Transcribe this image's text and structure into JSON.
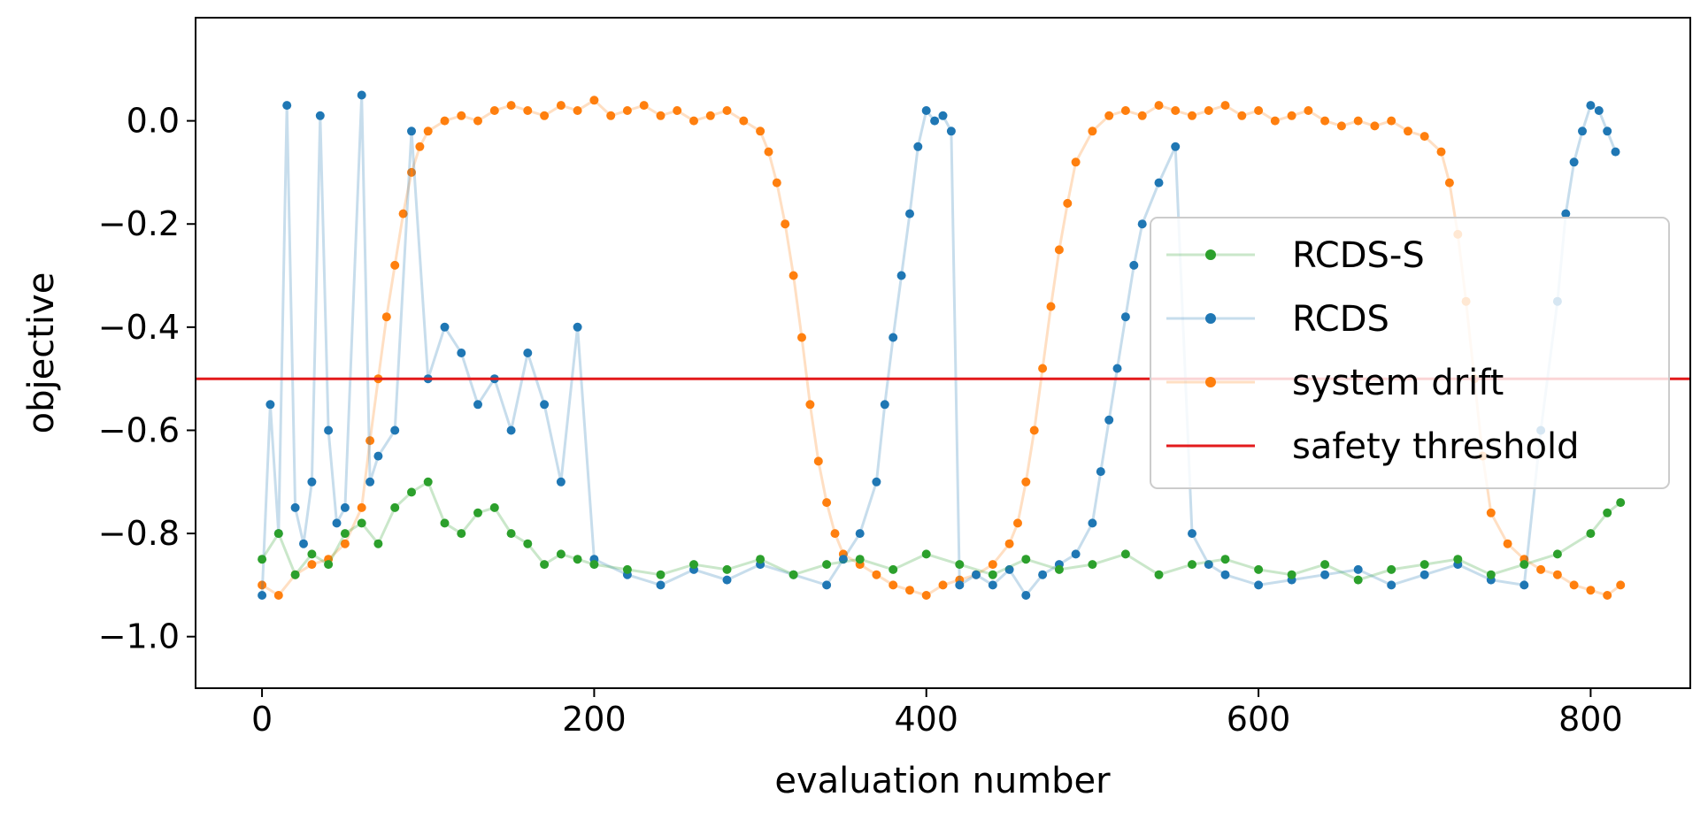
{
  "chart_data": {
    "type": "line",
    "title": "",
    "xlabel": "evaluation number",
    "ylabel": "objective",
    "xlim": [
      -40,
      860
    ],
    "ylim": [
      -1.1,
      0.2
    ],
    "xticks": [
      0,
      200,
      400,
      600,
      800
    ],
    "xtick_labels": [
      "0",
      "200",
      "400",
      "600",
      "800"
    ],
    "yticks": [
      0.0,
      -0.2,
      -0.4,
      -0.6,
      -0.8,
      -1.0
    ],
    "ytick_labels": [
      "0.0",
      "−0.2",
      "−0.4",
      "−0.6",
      "−0.8",
      "−1.0"
    ],
    "grid": false,
    "legend_position": "center-right",
    "series": [
      {
        "name": "system drift",
        "color": "#ff7f0e",
        "x": [
          0,
          10,
          20,
          30,
          40,
          50,
          60,
          65,
          70,
          75,
          80,
          85,
          90,
          95,
          100,
          110,
          120,
          130,
          140,
          150,
          160,
          170,
          180,
          190,
          200,
          210,
          220,
          230,
          240,
          250,
          260,
          270,
          280,
          290,
          300,
          305,
          310,
          315,
          320,
          325,
          330,
          335,
          340,
          345,
          350,
          360,
          370,
          380,
          390,
          400,
          410,
          420,
          430,
          440,
          450,
          455,
          460,
          465,
          470,
          475,
          480,
          485,
          490,
          500,
          510,
          520,
          530,
          540,
          550,
          560,
          570,
          580,
          590,
          600,
          610,
          620,
          630,
          640,
          650,
          660,
          670,
          680,
          690,
          700,
          710,
          715,
          720,
          725,
          730,
          735,
          740,
          750,
          760,
          770,
          780,
          790,
          800,
          810,
          818
        ],
        "values": [
          -0.9,
          -0.92,
          -0.88,
          -0.86,
          -0.85,
          -0.82,
          -0.75,
          -0.62,
          -0.5,
          -0.38,
          -0.28,
          -0.18,
          -0.1,
          -0.05,
          -0.02,
          0.0,
          0.01,
          0.0,
          0.02,
          0.03,
          0.02,
          0.01,
          0.03,
          0.02,
          0.04,
          0.01,
          0.02,
          0.03,
          0.01,
          0.02,
          0.0,
          0.01,
          0.02,
          0.0,
          -0.02,
          -0.06,
          -0.12,
          -0.2,
          -0.3,
          -0.42,
          -0.55,
          -0.66,
          -0.74,
          -0.8,
          -0.84,
          -0.86,
          -0.88,
          -0.9,
          -0.91,
          -0.92,
          -0.9,
          -0.89,
          -0.88,
          -0.86,
          -0.82,
          -0.78,
          -0.7,
          -0.6,
          -0.48,
          -0.36,
          -0.25,
          -0.16,
          -0.08,
          -0.02,
          0.01,
          0.02,
          0.01,
          0.03,
          0.02,
          0.01,
          0.02,
          0.03,
          0.01,
          0.02,
          0.0,
          0.01,
          0.02,
          0.0,
          -0.01,
          0.0,
          -0.01,
          0.0,
          -0.02,
          -0.03,
          -0.06,
          -0.12,
          -0.22,
          -0.35,
          -0.5,
          -0.65,
          -0.76,
          -0.82,
          -0.85,
          -0.87,
          -0.88,
          -0.9,
          -0.91,
          -0.92,
          -0.9
        ]
      },
      {
        "name": "RCDS",
        "color": "#1f77b4",
        "x": [
          0,
          5,
          10,
          15,
          20,
          25,
          30,
          35,
          40,
          45,
          50,
          60,
          65,
          70,
          80,
          90,
          100,
          110,
          120,
          130,
          140,
          150,
          160,
          170,
          180,
          190,
          200,
          220,
          240,
          260,
          280,
          300,
          320,
          340,
          350,
          360,
          370,
          375,
          380,
          385,
          390,
          395,
          400,
          405,
          410,
          415,
          420,
          430,
          440,
          450,
          460,
          470,
          480,
          490,
          500,
          505,
          510,
          515,
          520,
          525,
          530,
          540,
          550,
          560,
          570,
          580,
          600,
          620,
          640,
          660,
          680,
          700,
          720,
          740,
          760,
          770,
          780,
          785,
          790,
          795,
          800,
          805,
          810,
          815
        ],
        "values": [
          -0.92,
          -0.55,
          -0.8,
          0.03,
          -0.75,
          -0.82,
          -0.7,
          0.01,
          -0.6,
          -0.78,
          -0.75,
          0.05,
          -0.7,
          -0.65,
          -0.6,
          -0.02,
          -0.5,
          -0.4,
          -0.45,
          -0.55,
          -0.5,
          -0.6,
          -0.45,
          -0.55,
          -0.7,
          -0.4,
          -0.85,
          -0.88,
          -0.9,
          -0.87,
          -0.89,
          -0.86,
          -0.88,
          -0.9,
          -0.85,
          -0.8,
          -0.7,
          -0.55,
          -0.42,
          -0.3,
          -0.18,
          -0.05,
          0.02,
          0.0,
          0.01,
          -0.02,
          -0.9,
          -0.88,
          -0.9,
          -0.87,
          -0.92,
          -0.88,
          -0.86,
          -0.84,
          -0.78,
          -0.68,
          -0.58,
          -0.48,
          -0.38,
          -0.28,
          -0.2,
          -0.12,
          -0.05,
          -0.8,
          -0.86,
          -0.88,
          -0.9,
          -0.89,
          -0.88,
          -0.87,
          -0.9,
          -0.88,
          -0.86,
          -0.89,
          -0.9,
          -0.6,
          -0.35,
          -0.18,
          -0.08,
          -0.02,
          0.03,
          0.02,
          -0.02,
          -0.06
        ]
      },
      {
        "name": "RCDS-S",
        "color": "#2ca02c",
        "x": [
          0,
          10,
          20,
          30,
          40,
          50,
          60,
          70,
          80,
          90,
          100,
          110,
          120,
          130,
          140,
          150,
          160,
          170,
          180,
          190,
          200,
          220,
          240,
          260,
          280,
          300,
          320,
          340,
          360,
          380,
          400,
          420,
          440,
          460,
          480,
          500,
          520,
          540,
          560,
          580,
          600,
          620,
          640,
          660,
          680,
          700,
          720,
          740,
          760,
          780,
          800,
          810,
          818
        ],
        "values": [
          -0.85,
          -0.8,
          -0.88,
          -0.84,
          -0.86,
          -0.8,
          -0.78,
          -0.82,
          -0.75,
          -0.72,
          -0.7,
          -0.78,
          -0.8,
          -0.76,
          -0.75,
          -0.8,
          -0.82,
          -0.86,
          -0.84,
          -0.85,
          -0.86,
          -0.87,
          -0.88,
          -0.86,
          -0.87,
          -0.85,
          -0.88,
          -0.86,
          -0.85,
          -0.87,
          -0.84,
          -0.86,
          -0.88,
          -0.85,
          -0.87,
          -0.86,
          -0.84,
          -0.88,
          -0.86,
          -0.85,
          -0.87,
          -0.88,
          -0.86,
          -0.89,
          -0.87,
          -0.86,
          -0.85,
          -0.88,
          -0.86,
          -0.84,
          -0.8,
          -0.76,
          -0.74
        ]
      },
      {
        "name": "safety threshold",
        "color": "#e31a1c",
        "x": [
          -40,
          860
        ],
        "values": [
          -0.5,
          -0.5
        ]
      }
    ]
  }
}
